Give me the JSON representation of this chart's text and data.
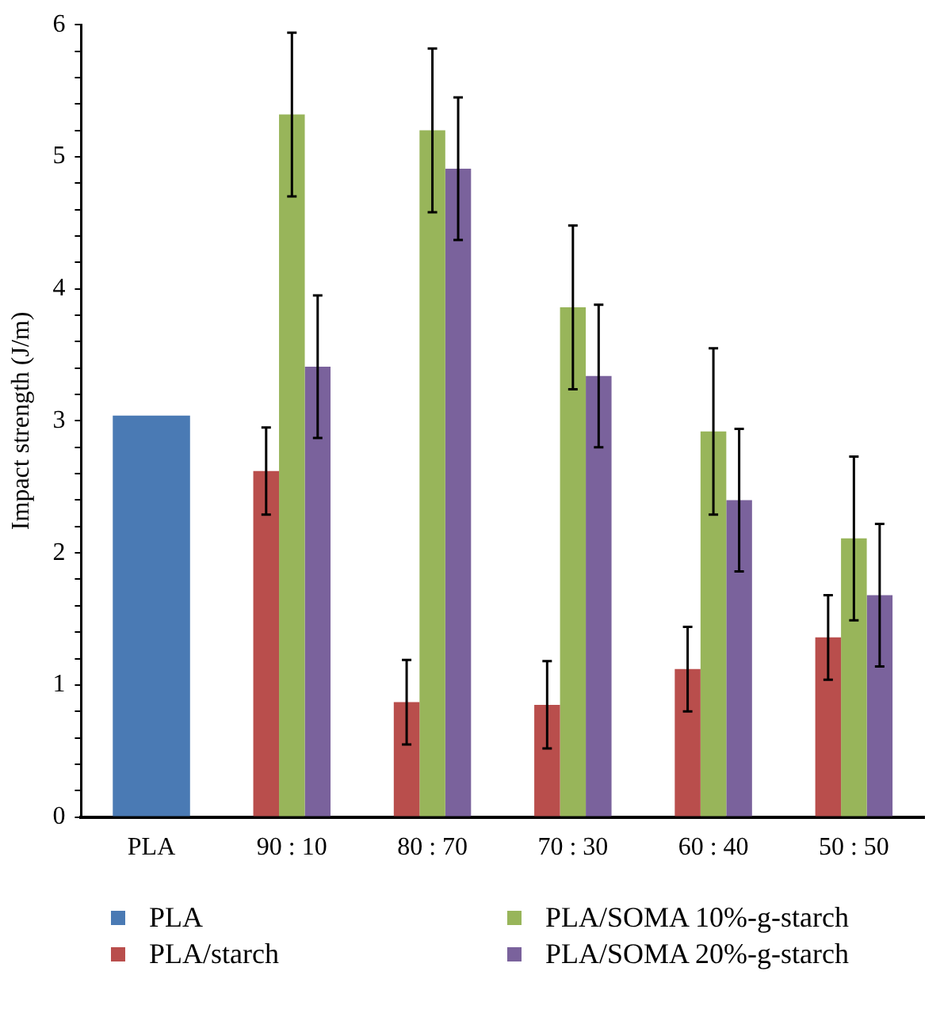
{
  "chart_data": {
    "type": "bar",
    "ylabel": "Impact strength (J/m)",
    "categories": [
      "PLA",
      "90 : 10",
      "80 : 70",
      "70 : 30",
      "60 : 40",
      "50 : 50"
    ],
    "series": [
      {
        "name": "PLA",
        "color": "#4a7ab4",
        "values": [
          3.04,
          null,
          null,
          null,
          null,
          null
        ]
      },
      {
        "name": "PLA/starch",
        "color": "#b94e4c",
        "values": [
          null,
          2.62,
          0.87,
          0.85,
          1.12,
          1.36
        ],
        "errors": [
          null,
          0.33,
          0.32,
          0.33,
          0.32,
          0.32
        ]
      },
      {
        "name": "PLA/SOMA 10%-g-starch",
        "color": "#98b55a",
        "values": [
          null,
          5.32,
          5.2,
          3.86,
          2.92,
          2.11
        ],
        "errors": [
          null,
          0.62,
          0.62,
          0.62,
          0.63,
          0.62
        ]
      },
      {
        "name": "PLA/SOMA 20%-g-starch",
        "color": "#7a629c",
        "values": [
          null,
          3.41,
          4.91,
          3.34,
          2.4,
          1.68
        ],
        "errors": [
          null,
          0.54,
          0.54,
          0.54,
          0.54,
          0.54
        ]
      }
    ],
    "ylim": [
      0,
      6
    ],
    "yticks": [
      0,
      {
        "value": 0.2,
        "label": null
      },
      {
        "value": 0.4,
        "label": null
      },
      {
        "value": 0.6,
        "label": null
      },
      {
        "value": 0.8,
        "label": null
      },
      1,
      {
        "value": 1.2,
        "label": null
      },
      {
        "value": 1.4,
        "label": null
      },
      {
        "value": 1.6,
        "label": null
      },
      {
        "value": 1.8,
        "label": null
      },
      2,
      {
        "value": 2.2,
        "label": null
      },
      {
        "value": 2.4,
        "label": null
      },
      {
        "value": 2.6,
        "label": null
      },
      {
        "value": 2.8,
        "label": null
      },
      3,
      {
        "value": 3.2,
        "label": null
      },
      {
        "value": 3.4,
        "label": null
      },
      {
        "value": 3.6,
        "label": null
      },
      {
        "value": 3.8,
        "label": null
      },
      4,
      {
        "value": 4.2,
        "label": null
      },
      {
        "value": 4.4,
        "label": null
      },
      {
        "value": 4.6,
        "label": null
      },
      {
        "value": 4.8,
        "label": null
      },
      5,
      {
        "value": 5.2,
        "label": null
      },
      {
        "value": 5.4,
        "label": null
      },
      {
        "value": 5.6,
        "label": null
      },
      {
        "value": 5.8,
        "label": null
      },
      6
    ],
    "grid": false,
    "legend": "bottom"
  }
}
